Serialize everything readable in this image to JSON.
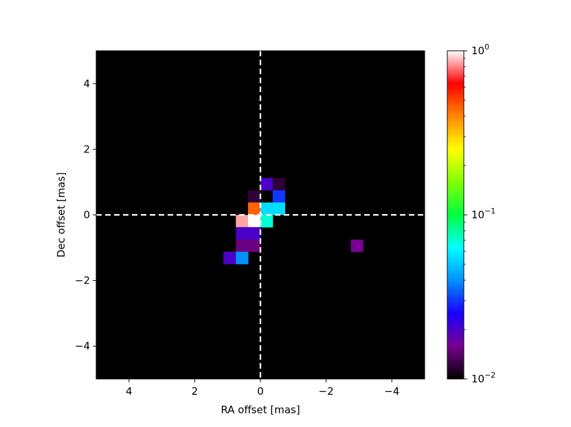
{
  "chart_data": {
    "type": "heatmap",
    "title": "",
    "xlabel": "RA offset [mas]",
    "ylabel": "Dec offset [mas]",
    "xlim": [
      5,
      -5
    ],
    "ylim": [
      -5,
      5
    ],
    "x_inverted": true,
    "x_ticks": [
      4,
      2,
      0,
      -2,
      -4
    ],
    "x_tick_labels": [
      "4",
      "2",
      "0",
      "−2",
      "−4"
    ],
    "y_ticks": [
      4,
      2,
      0,
      -2,
      -4
    ],
    "y_tick_labels": [
      "4",
      "2",
      "0",
      "−2",
      "−4"
    ],
    "background_color": "#000000",
    "crosshair": {
      "x": 0,
      "y": 0,
      "style": "dashed",
      "color": "#ffffff"
    },
    "pixel_size_mas": 0.375,
    "colorbar": {
      "scale": "log",
      "colormap": "gist_ncar-like",
      "range": [
        0.01,
        1
      ],
      "tick_labels": [
        {
          "base": "10",
          "exp": "0"
        },
        {
          "base": "10",
          "exp": "−1"
        },
        {
          "base": "10",
          "exp": "−2"
        }
      ],
      "tick_values": [
        1,
        0.1,
        0.01
      ],
      "stops": [
        "#000000",
        "#7a0090",
        "#1a00ff",
        "#0090ff",
        "#00ffff",
        "#00ff40",
        "#80ff00",
        "#ffff00",
        "#ff8800",
        "#ff0000",
        "#ffffff"
      ]
    },
    "cells": [
      {
        "ra": -0.19,
        "dec": 0.94,
        "value": 0.02
      },
      {
        "ra": -0.56,
        "dec": 0.94,
        "value": 0.012
      },
      {
        "ra": 0.19,
        "dec": 0.56,
        "value": 0.012
      },
      {
        "ra": -0.56,
        "dec": 0.56,
        "value": 0.03
      },
      {
        "ra": 0.19,
        "dec": 0.19,
        "value": 0.45
      },
      {
        "ra": -0.19,
        "dec": 0.19,
        "value": 0.055
      },
      {
        "ra": -0.56,
        "dec": 0.19,
        "value": 0.055
      },
      {
        "ra": 0.56,
        "dec": -0.19,
        "value": 0.85
      },
      {
        "ra": 0.19,
        "dec": -0.19,
        "value": 1.0
      },
      {
        "ra": -0.19,
        "dec": -0.19,
        "value": 0.07
      },
      {
        "ra": 0.56,
        "dec": -0.56,
        "value": 0.02
      },
      {
        "ra": 0.19,
        "dec": -0.56,
        "value": 0.02
      },
      {
        "ra": 0.94,
        "dec": -0.94,
        "value": 0.01
      },
      {
        "ra": 0.56,
        "dec": -0.94,
        "value": 0.015
      },
      {
        "ra": 0.19,
        "dec": -0.94,
        "value": 0.015
      },
      {
        "ra": 0.94,
        "dec": -1.31,
        "value": 0.02
      },
      {
        "ra": 0.56,
        "dec": -1.31,
        "value": 0.04
      },
      {
        "ra": -2.94,
        "dec": -0.94,
        "value": 0.016
      }
    ]
  }
}
